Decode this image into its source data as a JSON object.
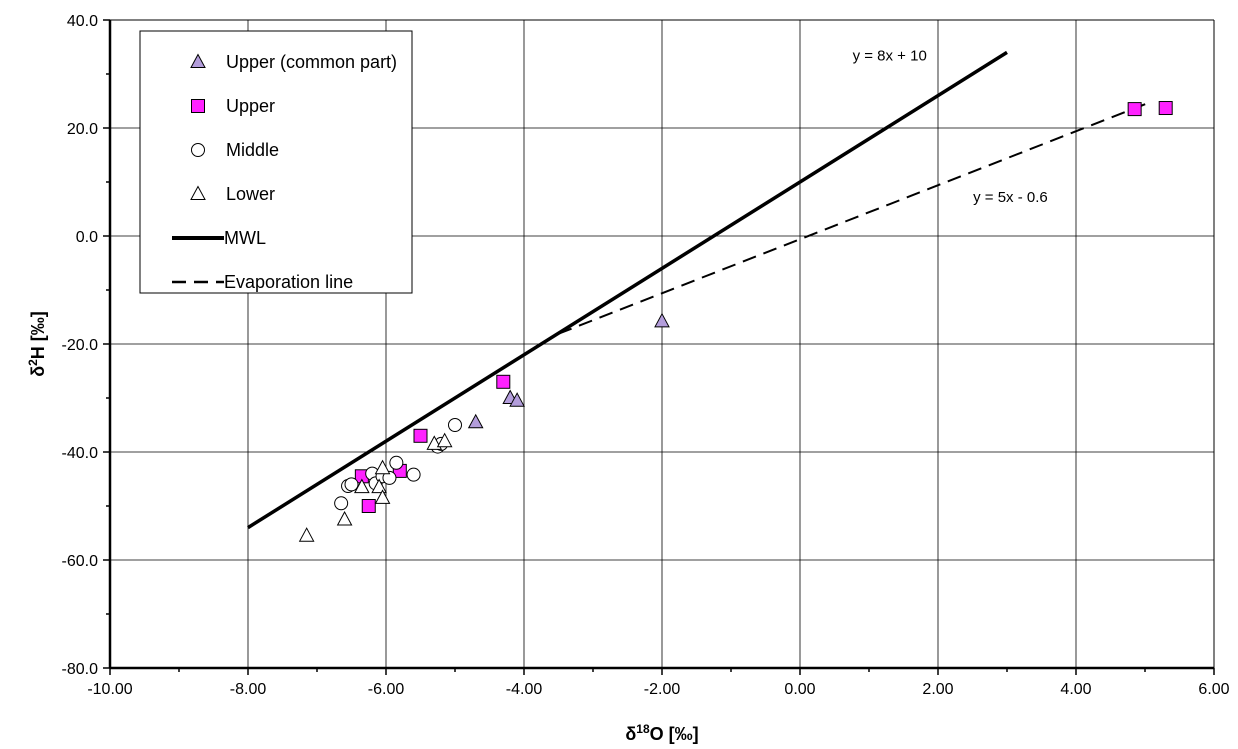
{
  "chart_data": {
    "type": "scatter",
    "xlabel": {
      "prefix": "δ",
      "sup": "18",
      "suffix": "O [‰]"
    },
    "ylabel": {
      "prefix": "δ",
      "sup": "2",
      "suffix": "H [‰]"
    },
    "xlim": [
      -10,
      6
    ],
    "ylim": [
      -80,
      40
    ],
    "x_ticks": [
      -10,
      -8,
      -6,
      -4,
      -2,
      0,
      2,
      4,
      6
    ],
    "x_tick_labels": [
      "-10.00",
      "-8.00",
      "-6.00",
      "-4.00",
      "-2.00",
      "0.00",
      "2.00",
      "4.00",
      "6.00"
    ],
    "y_ticks": [
      -80,
      -60,
      -40,
      -20,
      0,
      20,
      40
    ],
    "y_tick_labels": [
      "-80.0",
      "-60.0",
      "-40.0",
      "-20.0",
      "0.0",
      "20.0",
      "40.0"
    ],
    "minor_step_x": 1,
    "minor_step_y": 10,
    "grid": true,
    "legend_position": "top-left",
    "series": [
      {
        "name": "Upper (common part)",
        "marker": "triangle",
        "color": "#b39ddb",
        "points": [
          [
            -4.7,
            -34.5
          ],
          [
            -4.2,
            -30
          ],
          [
            -4.1,
            -30.5
          ],
          [
            -2.0,
            -15.8
          ]
        ]
      },
      {
        "name": "Upper",
        "marker": "square",
        "color": "#ff22ff",
        "points": [
          [
            -6.35,
            -44.5
          ],
          [
            -6.25,
            -50
          ],
          [
            -5.8,
            -43.5
          ],
          [
            -5.5,
            -37
          ],
          [
            -4.3,
            -27
          ],
          [
            4.85,
            23.5
          ],
          [
            5.3,
            23.7
          ]
        ]
      },
      {
        "name": "Middle",
        "marker": "circle",
        "color": "#ffffff",
        "points": [
          [
            -6.65,
            -49.5
          ],
          [
            -6.55,
            -46.3
          ],
          [
            -6.5,
            -46
          ],
          [
            -6.2,
            -44
          ],
          [
            -6.15,
            -45.8
          ],
          [
            -6.05,
            -44.5
          ],
          [
            -5.95,
            -44.8
          ],
          [
            -5.85,
            -42
          ],
          [
            -5.6,
            -44.2
          ],
          [
            -5.25,
            -39
          ],
          [
            -5.2,
            -38.5
          ],
          [
            -5.0,
            -35
          ]
        ]
      },
      {
        "name": "Lower",
        "marker": "triangle",
        "color": "#ffffff",
        "points": [
          [
            -7.15,
            -55.5
          ],
          [
            -6.6,
            -52.5
          ],
          [
            -6.35,
            -46.5
          ],
          [
            -6.1,
            -46.5
          ],
          [
            -6.05,
            -48.5
          ],
          [
            -6.05,
            -43
          ],
          [
            -5.3,
            -38.5
          ],
          [
            -5.15,
            -38
          ]
        ]
      },
      {
        "name": "MWL",
        "type": "line",
        "style": "solid",
        "color": "#000000",
        "equation": "y = 8x + 10",
        "points": [
          [
            -8,
            -54
          ],
          [
            3,
            34
          ]
        ]
      },
      {
        "name": "Evaporation line",
        "type": "line",
        "style": "dashed",
        "color": "#000000",
        "equation": "y = 5x - 0.6",
        "points": [
          [
            -3.5,
            -18.1
          ],
          [
            5.1,
            24.9
          ]
        ]
      }
    ],
    "annotations": [
      {
        "text": "y = 8x + 10",
        "x": 1.3,
        "y": 32.5
      },
      {
        "text": "y = 5x - 0.6",
        "x": 3.05,
        "y": 6.3
      }
    ]
  }
}
